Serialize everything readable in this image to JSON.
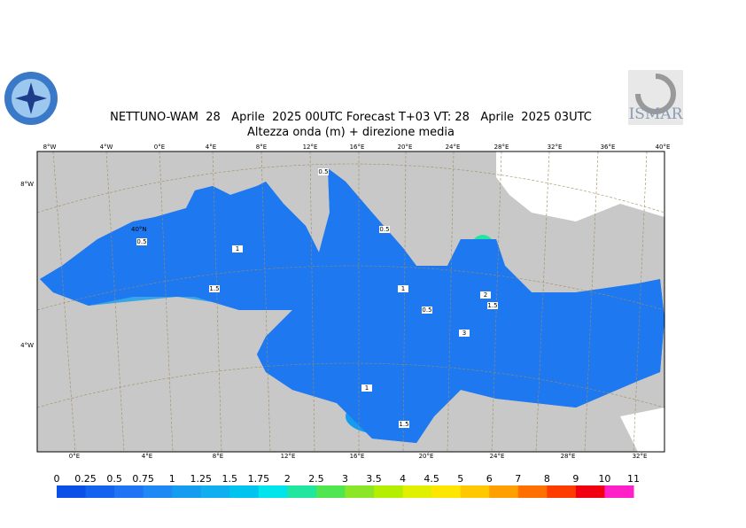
{
  "header": {
    "title": "NETTUNO-WAM  28   Aprile  2025 00UTC Forecast T+03 VT: 28   Aprile  2025 03UTC",
    "subtitle": "Altezza onda (m) + direzione media",
    "logo_right": "ISMAR"
  },
  "map": {
    "top_labels": [
      "8°W",
      "4°W",
      "0°E",
      "4°E",
      "8°E",
      "12°E",
      "16°E",
      "20°E",
      "24°E",
      "28°E",
      "32°E",
      "36°E",
      "40°E"
    ],
    "bottom_labels": [
      "0°E",
      "4°E",
      "8°E",
      "12°E",
      "16°E",
      "20°E",
      "24°E",
      "28°E",
      "32°E"
    ],
    "left_labels": [
      "8°W",
      "4°W"
    ],
    "inner_labels": [
      "40°N"
    ],
    "contour_labels": [
      "0.5",
      "1",
      "1.5",
      "0.5",
      "1",
      "0.5",
      "0.5",
      "3",
      "2",
      "1.5",
      "1",
      "1.5"
    ]
  },
  "legend": {
    "levels": [
      0,
      0.25,
      0.5,
      0.75,
      1,
      1.25,
      1.5,
      1.75,
      2,
      2.5,
      3,
      3.5,
      4,
      4.5,
      5,
      6,
      7,
      8,
      9,
      10,
      11
    ],
    "colors": [
      "#0a4fe8",
      "#1462f0",
      "#1e74f5",
      "#1e88f5",
      "#149cf0",
      "#10b0f0",
      "#00c4f0",
      "#00e4ec",
      "#20e6a0",
      "#50e650",
      "#8ce628",
      "#b4ee00",
      "#e0f000",
      "#ffe600",
      "#ffc800",
      "#ffa000",
      "#ff7000",
      "#ff3c00",
      "#f00010",
      "#ff20c8"
    ]
  }
}
